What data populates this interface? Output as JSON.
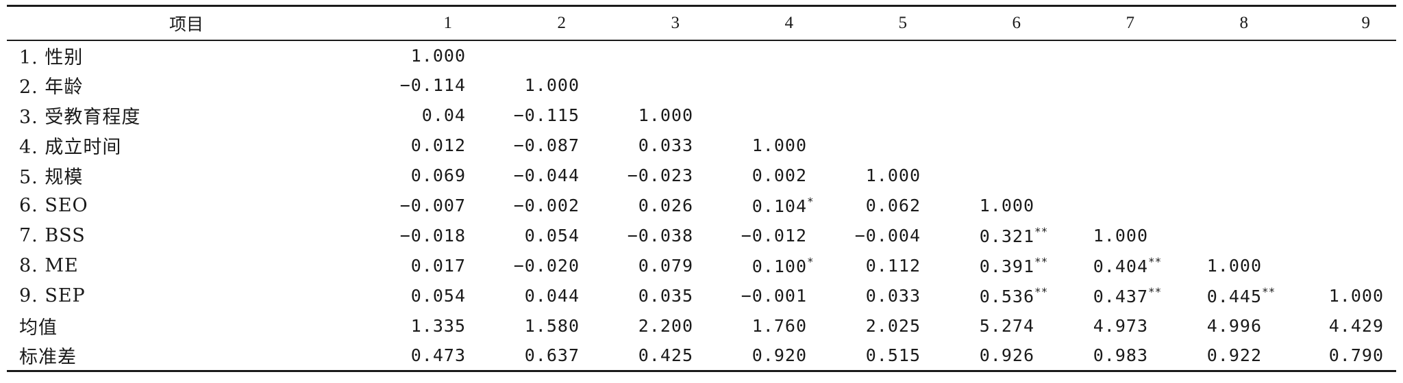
{
  "table": {
    "headers": [
      "项目",
      "1",
      "2",
      "3",
      "4",
      "5",
      "6",
      "7",
      "8",
      "9"
    ],
    "rows": [
      {
        "label": "1. 性别",
        "cells": [
          {
            "v": "1.000"
          },
          {
            "v": ""
          },
          {
            "v": ""
          },
          {
            "v": ""
          },
          {
            "v": ""
          },
          {
            "v": ""
          },
          {
            "v": ""
          },
          {
            "v": ""
          },
          {
            "v": ""
          }
        ]
      },
      {
        "label": "2. 年龄",
        "cells": [
          {
            "v": "−0.114"
          },
          {
            "v": "1.000"
          },
          {
            "v": ""
          },
          {
            "v": ""
          },
          {
            "v": ""
          },
          {
            "v": ""
          },
          {
            "v": ""
          },
          {
            "v": ""
          },
          {
            "v": ""
          }
        ]
      },
      {
        "label": "3. 受教育程度",
        "cells": [
          {
            "v": "0.04"
          },
          {
            "v": "−0.115"
          },
          {
            "v": "1.000"
          },
          {
            "v": ""
          },
          {
            "v": ""
          },
          {
            "v": ""
          },
          {
            "v": ""
          },
          {
            "v": ""
          },
          {
            "v": ""
          }
        ]
      },
      {
        "label": "4. 成立时间",
        "cells": [
          {
            "v": "0.012"
          },
          {
            "v": "−0.087"
          },
          {
            "v": "0.033"
          },
          {
            "v": "1.000"
          },
          {
            "v": ""
          },
          {
            "v": ""
          },
          {
            "v": ""
          },
          {
            "v": ""
          },
          {
            "v": ""
          }
        ]
      },
      {
        "label": "5. 规模",
        "cells": [
          {
            "v": "0.069"
          },
          {
            "v": "−0.044"
          },
          {
            "v": "−0.023"
          },
          {
            "v": "0.002"
          },
          {
            "v": "1.000"
          },
          {
            "v": ""
          },
          {
            "v": ""
          },
          {
            "v": ""
          },
          {
            "v": ""
          }
        ]
      },
      {
        "label": "6. SEO",
        "cells": [
          {
            "v": "−0.007"
          },
          {
            "v": "−0.002"
          },
          {
            "v": "0.026"
          },
          {
            "v": "0.104",
            "sig": "*"
          },
          {
            "v": "0.062"
          },
          {
            "v": "1.000"
          },
          {
            "v": ""
          },
          {
            "v": ""
          },
          {
            "v": ""
          }
        ]
      },
      {
        "label": "7. BSS",
        "cells": [
          {
            "v": "−0.018"
          },
          {
            "v": "0.054"
          },
          {
            "v": "−0.038"
          },
          {
            "v": "−0.012"
          },
          {
            "v": "−0.004"
          },
          {
            "v": "0.321",
            "sig": "**"
          },
          {
            "v": "1.000"
          },
          {
            "v": ""
          },
          {
            "v": ""
          }
        ]
      },
      {
        "label": "8. ME",
        "cells": [
          {
            "v": "0.017"
          },
          {
            "v": "−0.020"
          },
          {
            "v": "0.079"
          },
          {
            "v": "0.100",
            "sig": "*"
          },
          {
            "v": "0.112"
          },
          {
            "v": "0.391",
            "sig": "**"
          },
          {
            "v": "0.404",
            "sig": "**"
          },
          {
            "v": "1.000"
          },
          {
            "v": ""
          }
        ]
      },
      {
        "label": "9. SEP",
        "cells": [
          {
            "v": "0.054"
          },
          {
            "v": "0.044"
          },
          {
            "v": "0.035"
          },
          {
            "v": "−0.001"
          },
          {
            "v": "0.033"
          },
          {
            "v": "0.536",
            "sig": "**"
          },
          {
            "v": "0.437",
            "sig": "**"
          },
          {
            "v": "0.445",
            "sig": "**"
          },
          {
            "v": "1.000"
          }
        ]
      },
      {
        "label": "均值",
        "cells": [
          {
            "v": "1.335"
          },
          {
            "v": "1.580"
          },
          {
            "v": "2.200"
          },
          {
            "v": "1.760"
          },
          {
            "v": "2.025"
          },
          {
            "v": "5.274"
          },
          {
            "v": "4.973"
          },
          {
            "v": "4.996"
          },
          {
            "v": "4.429"
          }
        ]
      },
      {
        "label": "标准差",
        "cells": [
          {
            "v": "0.473"
          },
          {
            "v": "0.637"
          },
          {
            "v": "0.425"
          },
          {
            "v": "0.920"
          },
          {
            "v": "0.515"
          },
          {
            "v": "0.926"
          },
          {
            "v": "0.983"
          },
          {
            "v": "0.922"
          },
          {
            "v": "0.790"
          }
        ]
      }
    ]
  }
}
